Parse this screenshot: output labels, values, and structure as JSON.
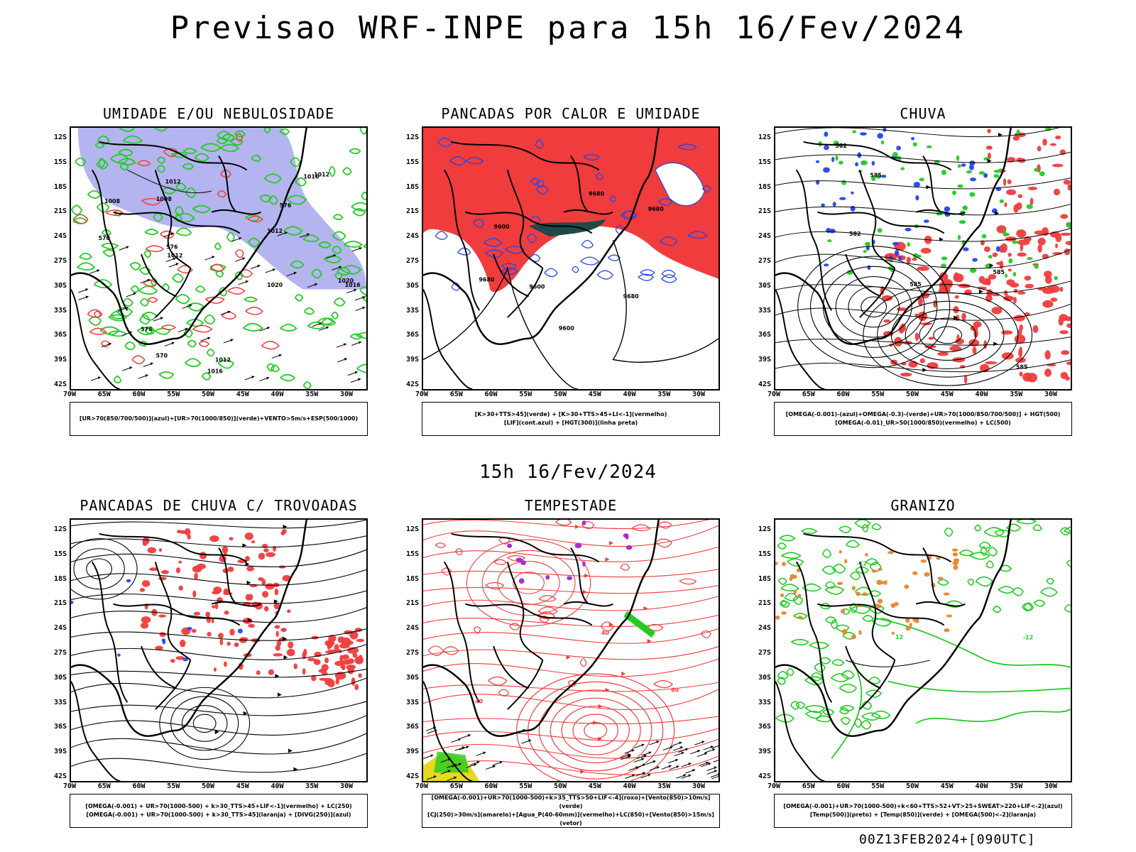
{
  "main_title": "Previsao WRF-INPE  para 15h 16/Fev/2024",
  "mid_date": "15h 16/Fev/2024",
  "footer": "00Z13FEB2024+[090UTC]",
  "lat_labels": [
    "12S",
    "15S",
    "18S",
    "21S",
    "24S",
    "27S",
    "30S",
    "33S",
    "36S",
    "39S",
    "42S"
  ],
  "lon_labels": [
    "70W",
    "65W",
    "60W",
    "55W",
    "50W",
    "45W",
    "40W",
    "35W",
    "30W"
  ],
  "colors": {
    "red": "#f03c3c",
    "green": "#22cc22",
    "blue": "#2244ee",
    "lavender": "#b4b4f0",
    "orange": "#e8842a",
    "purple": "#aa22cc",
    "yellow": "#e8d820",
    "darkteal": "#1e4a4a",
    "black": "#000000"
  },
  "panels": [
    {
      "title": "UMIDADE E/OU NEBULOSIDADE",
      "legend": [
        "[UR>70(850/700/500)](azul)+[UR>70(1000/850)](verde)+VENTO>5m/s+ESP(500/1000)"
      ],
      "contour_labels": [
        "1008",
        "1008",
        "1012",
        "1012",
        "1016",
        "1016",
        "1020",
        "1012",
        "1012",
        "1016",
        "1020",
        "1012",
        "576",
        "576",
        "570",
        "570",
        "576"
      ]
    },
    {
      "title": "PANCADAS POR CALOR E UMIDADE",
      "legend": [
        "[K>30+TTS>45](verde) + [K>30+TTS>45+LI<-1](vermelho)",
        "[LIF](cont.azul) + [HGT(300)](linha preta)"
      ],
      "contour_labels": [
        "9680",
        "9680",
        "9600",
        "9680",
        "9600",
        "9600",
        "9680"
      ]
    },
    {
      "title": "CHUVA",
      "legend": [
        "[OMEGA(-0.001)-(azul)+OMEGA(-0.3)-(verde)+UR>70(1000/850/700/500)] + HGT(500)",
        "[OMEGA(-0.01)_UR>50(1000/850)(vermelho) + LC(500)"
      ],
      "contour_labels": [
        "585",
        "582",
        "582",
        "585",
        "585",
        "585"
      ]
    },
    {
      "title": "PANCADAS DE CHUVA C/ TROVOADAS",
      "legend": [
        "[OMEGA(-0.001) + UR>70(1000-500) + k>30_TTS>45+LIF<-1](vermelho) + LC(250)",
        "[OMEGA(-0.001) + UR>70(1000-500) + k>30_TTS>45](laranja) + [DIVG(250)](azul)"
      ],
      "contour_labels": []
    },
    {
      "title": "TEMPESTADE",
      "legend": [
        "[OMEGA(-0.001)+UR>70(1000-500)+k>35_TTS>50+LIF<-4](roxo)+[Vento(850)>10m/s](verde)",
        "[CJ(250)>30m/s](amarelo)+[Agua_P(40-60mm)](vermelho)+LC(850)+[Vento(850)>15m/s](vetor)"
      ],
      "contour_labels": [
        "40",
        "40",
        "60"
      ]
    },
    {
      "title": "GRANIZO",
      "legend": [
        "[OMEGA(-0.001)+UR>70(1000-500)+k<60+TTS>52+VT>25+SWEAT>220+LIF<-2](azul)",
        "[Temp(500)](preto) + [Temp(850)](verde) + [OMEGA(500)<-2](laranja)"
      ],
      "contour_labels": [
        "-12",
        "-12",
        "12"
      ]
    }
  ]
}
